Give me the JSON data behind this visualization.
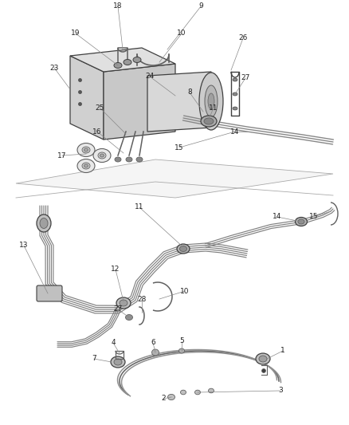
{
  "bg_color": "#ffffff",
  "lc": "#606060",
  "lc_light": "#909090",
  "lc_dark": "#404040",
  "fig_width": 4.38,
  "fig_height": 5.33,
  "dpi": 100,
  "s1_labels": [
    [
      "18",
      155,
      12
    ],
    [
      "9",
      252,
      10
    ],
    [
      "19",
      115,
      48
    ],
    [
      "10",
      230,
      48
    ],
    [
      "26",
      302,
      52
    ],
    [
      "23",
      88,
      88
    ],
    [
      "24",
      195,
      98
    ],
    [
      "27",
      305,
      100
    ],
    [
      "8",
      240,
      118
    ],
    [
      "25",
      140,
      138
    ],
    [
      "11",
      262,
      138
    ],
    [
      "16",
      135,
      168
    ],
    [
      "14",
      288,
      168
    ],
    [
      "15",
      228,
      188
    ],
    [
      "17",
      88,
      198
    ]
  ],
  "s2_labels": [
    [
      "11",
      175,
      268
    ],
    [
      "14",
      345,
      278
    ],
    [
      "15",
      390,
      278
    ],
    [
      "13",
      42,
      308
    ],
    [
      "12",
      152,
      340
    ],
    [
      "28",
      182,
      378
    ],
    [
      "27",
      158,
      388
    ],
    [
      "10",
      232,
      370
    ]
  ],
  "s3_labels": [
    [
      "4",
      152,
      434
    ],
    [
      "7",
      136,
      450
    ],
    [
      "6",
      198,
      434
    ],
    [
      "5",
      230,
      432
    ],
    [
      "1",
      340,
      444
    ],
    [
      "2",
      215,
      498
    ],
    [
      "3",
      348,
      492
    ]
  ]
}
